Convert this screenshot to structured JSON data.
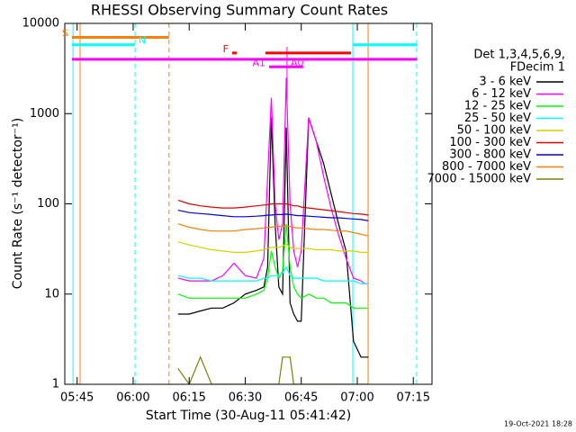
{
  "chart_data": {
    "type": "line",
    "title": "RHESSI Observing Summary Count Rates",
    "x_label": "Start Time (30-Aug-11 05:41:42)",
    "y_label": "Count Rate (s⁻¹ detector⁻¹)",
    "footer": "19-Oct-2021 18:28",
    "legend_title": [
      "Det 1,3,4,5,6,9,",
      "FDecim 1"
    ],
    "log_y": true,
    "xlim": [
      341.7,
      440
    ],
    "xticks": [
      {
        "value": 345,
        "label": "05:45"
      },
      {
        "value": 360,
        "label": "06:00"
      },
      {
        "value": 375,
        "label": "06:15"
      },
      {
        "value": 390,
        "label": "06:30"
      },
      {
        "value": 405,
        "label": "06:45"
      },
      {
        "value": 420,
        "label": "07:00"
      },
      {
        "value": 435,
        "label": "07:15"
      }
    ],
    "ylim": [
      1,
      10000
    ],
    "yticks": [
      1,
      10,
      100,
      1000,
      10000
    ],
    "x": [
      372,
      375,
      378,
      381,
      384,
      387,
      390,
      393,
      395,
      396,
      397,
      398,
      399,
      400,
      401,
      402,
      403,
      404,
      405,
      407,
      409,
      411,
      413,
      415,
      417,
      419,
      421,
      422,
      423
    ],
    "series": [
      {
        "name": "3 - 6 keV",
        "color": "#000000",
        "values": [
          6,
          6,
          6.5,
          7,
          7,
          8,
          10,
          11,
          12,
          20,
          900,
          60,
          12,
          10,
          700,
          8,
          6,
          5,
          5,
          900,
          500,
          280,
          130,
          60,
          30,
          3,
          2,
          2,
          2
        ]
      },
      {
        "name": "6 - 12 keV",
        "color": "#ff00ff",
        "values": [
          15,
          14,
          14,
          14,
          16,
          22,
          16,
          15,
          25,
          200,
          1500,
          100,
          40,
          60,
          2500,
          100,
          30,
          20,
          30,
          900,
          500,
          200,
          90,
          45,
          25,
          15,
          14,
          13,
          13
        ]
      },
      {
        "name": "12 - 25 keV",
        "color": "#00ff00",
        "values": [
          10,
          9,
          9,
          9,
          9,
          9,
          9,
          10,
          11,
          15,
          30,
          20,
          15,
          18,
          60,
          20,
          12,
          10,
          9,
          10,
          9,
          9,
          8,
          8,
          8,
          7,
          7,
          7,
          7
        ]
      },
      {
        "name": "25 - 50 keV",
        "color": "#00ffff",
        "values": [
          16,
          15,
          15,
          14,
          14,
          14,
          14,
          14,
          15,
          15,
          16,
          16,
          16,
          17,
          20,
          16,
          15,
          15,
          15,
          15,
          15,
          14,
          14,
          14,
          14,
          14,
          13,
          13,
          13
        ]
      },
      {
        "name": "50 - 100 keV",
        "color": "#d2d200",
        "values": [
          38,
          35,
          33,
          31,
          30,
          29,
          29,
          30,
          31,
          32,
          33,
          33,
          33,
          34,
          36,
          33,
          32,
          32,
          32,
          32,
          31,
          31,
          31,
          30,
          30,
          30,
          29,
          29,
          29
        ]
      },
      {
        "name": "100 - 300 keV",
        "color": "#e00000",
        "values": [
          110,
          100,
          95,
          92,
          90,
          90,
          92,
          95,
          97,
          98,
          100,
          100,
          100,
          100,
          100,
          98,
          95,
          95,
          92,
          90,
          88,
          86,
          84,
          82,
          80,
          78,
          77,
          76,
          75
        ]
      },
      {
        "name": "300 - 800 keV",
        "color": "#0000e0",
        "values": [
          85,
          80,
          78,
          76,
          74,
          72,
          72,
          73,
          74,
          75,
          75,
          76,
          76,
          76,
          77,
          76,
          75,
          74,
          74,
          73,
          72,
          71,
          70,
          70,
          69,
          68,
          67,
          66,
          65
        ]
      },
      {
        "name": "800 - 7000 keV",
        "color": "#ff8000",
        "values": [
          60,
          55,
          52,
          50,
          50,
          50,
          52,
          53,
          54,
          55,
          55,
          56,
          56,
          56,
          57,
          56,
          55,
          54,
          54,
          53,
          52,
          52,
          51,
          50,
          50,
          48,
          46,
          45,
          44
        ]
      },
      {
        "name": "7000 - 15000 keV",
        "color": "#808000",
        "values": [
          1.5,
          1,
          2,
          1,
          1,
          1,
          1,
          1,
          1,
          1,
          1,
          1,
          1,
          2,
          2,
          2,
          1,
          1,
          1,
          1,
          1,
          1,
          1,
          1,
          1,
          1,
          1,
          1,
          1
        ]
      }
    ],
    "annotations": [
      {
        "label": "S",
        "color": "#ff8000",
        "start": 343.6,
        "end": 369.6,
        "level": 7000,
        "label_at": "start"
      },
      {
        "label": "N",
        "color": "#00ffff",
        "start": 343.6,
        "end": 360.5,
        "level": 5800,
        "label_at": "end"
      },
      {
        "color": "#00ffff",
        "start": 418.8,
        "end": 436,
        "level": 5800
      },
      {
        "label": "F",
        "color": "#ff0000",
        "start": 386.5,
        "end": 387.7,
        "level": 4700,
        "label_at": "start"
      },
      {
        "color": "#ff0000",
        "start": 395.4,
        "end": 418.3,
        "level": 4700
      },
      {
        "color": "#ff00ff",
        "start": 343.6,
        "end": 436,
        "level": 4000
      },
      {
        "label": "A0",
        "color": "#ff00ff",
        "start": 401.2,
        "end": 401.2,
        "level": 3300,
        "label_at": "end"
      },
      {
        "label": "A1",
        "color": "#ff00ff",
        "start": 396.4,
        "end": 405.5,
        "level": 3300,
        "label_at": "start"
      }
    ],
    "vlines": [
      {
        "x": 343.9,
        "color": "#00ffff",
        "style": "solid"
      },
      {
        "x": 345.8,
        "color": "#ff8000",
        "style": "solid"
      },
      {
        "x": 360.5,
        "color": "#00ffff",
        "style": "dashed"
      },
      {
        "x": 369.6,
        "color": "#ff8000",
        "style": "dashed"
      },
      {
        "x": 401.2,
        "color": "#ff00ff",
        "style": "solid",
        "range": [
          1450,
          5500
        ]
      },
      {
        "x": 418.8,
        "color": "#00ffff",
        "style": "solid"
      },
      {
        "x": 422.9,
        "color": "#ff8000",
        "style": "solid"
      },
      {
        "x": 435.9,
        "color": "#00ffff",
        "style": "dashed"
      }
    ]
  }
}
